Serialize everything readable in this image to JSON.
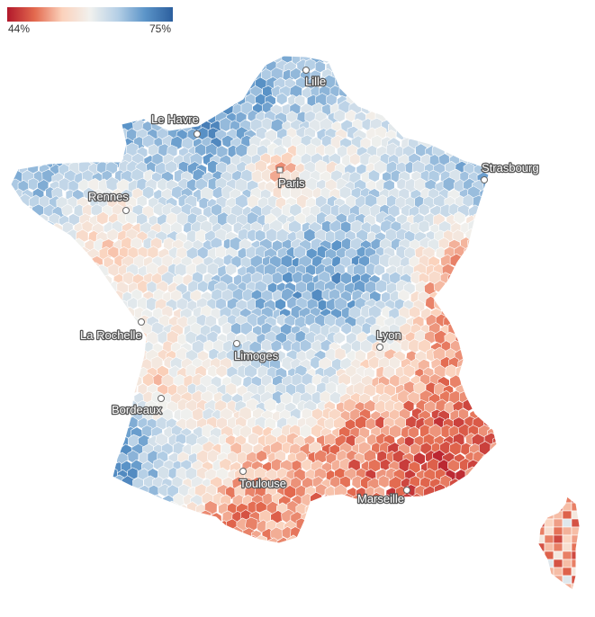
{
  "legend": {
    "min_label": "44%",
    "max_label": "75%",
    "colors": [
      "#b2182b",
      "#e36a4f",
      "#fbd2bc",
      "#f1f1ee",
      "#b5cfe6",
      "#5b94c8",
      "#2c5f9e"
    ]
  },
  "map": {
    "region": "France",
    "cities": [
      {
        "name": "Lille"
      },
      {
        "name": "Le Havre"
      },
      {
        "name": "Paris"
      },
      {
        "name": "Strasbourg"
      },
      {
        "name": "Rennes"
      },
      {
        "name": "La Rochelle"
      },
      {
        "name": "Lyon"
      },
      {
        "name": "Limoges"
      },
      {
        "name": "Bordeaux"
      },
      {
        "name": "Toulouse"
      },
      {
        "name": "Marseille"
      }
    ]
  }
}
